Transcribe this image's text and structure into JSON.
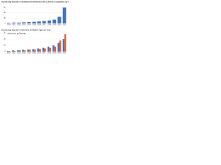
{
  "chart_data": [
    {
      "type": "bar",
      "title": "Increasing Number of Software Downloads from Chinese Companies by Year",
      "categories": [
        "2010",
        "2011",
        "2012",
        "2013",
        "2014",
        "2015",
        "2016",
        "2017",
        "2018",
        "2019",
        "2020",
        "2021"
      ],
      "series": [
        {
          "name": "Downloads",
          "color": "#4472c4",
          "values": [
            2,
            3,
            3,
            4,
            5,
            6,
            7,
            9,
            11,
            14,
            25,
            60
          ]
        }
      ],
      "ylim": [
        0,
        70
      ],
      "yticks": [
        0,
        20,
        40,
        60
      ],
      "grid": true
    },
    {
      "type": "bar",
      "title": "Increasing Number of Chinese Software Apps by Year",
      "categories": [
        "2010",
        "2011",
        "2012",
        "2013",
        "2014",
        "2015",
        "2016",
        "2017",
        "2018",
        "2019",
        "2020",
        "2021"
      ],
      "series": [
        {
          "name": "Domestic",
          "color": "#4472c4",
          "values": [
            1,
            2,
            2,
            3,
            3,
            4,
            5,
            6,
            8,
            10,
            14,
            20
          ]
        },
        {
          "name": "Overseas",
          "color": "#e0602a",
          "values": [
            1,
            1,
            2,
            2,
            3,
            3,
            4,
            5,
            6,
            8,
            18,
            28
          ]
        }
      ],
      "ylim": [
        0,
        30
      ],
      "yticks": [
        0,
        10,
        20,
        30
      ],
      "grid": true,
      "legend": "upper-left"
    }
  ]
}
